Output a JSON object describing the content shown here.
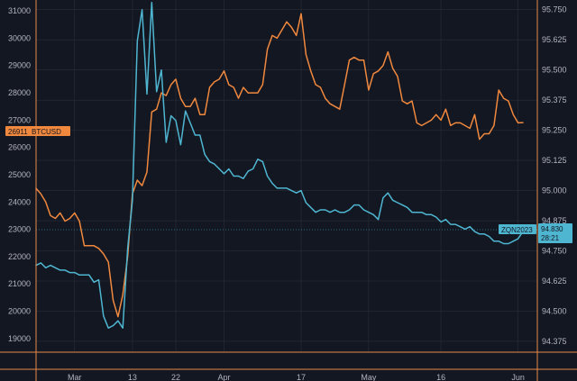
{
  "chart_data": {
    "type": "line",
    "grid": true,
    "colors": {
      "background": "#131722",
      "grid": "#2a2e39",
      "btc": "#f0883e",
      "zqn": "#4fb6d1",
      "frame": "#e8884a"
    },
    "x_axis": {
      "labels": [
        "Mar",
        "13",
        "22",
        "Apr",
        "17",
        "May",
        "16",
        "Jun"
      ],
      "positions": [
        "2023-03-01",
        "2023-03-13",
        "2023-03-22",
        "2023-04-01",
        "2023-04-17",
        "2023-05-01",
        "2023-05-16",
        "2023-06-01"
      ],
      "range": [
        "2023-02-21",
        "2023-06-05"
      ]
    },
    "y_left": {
      "ticks": [
        31000,
        30000,
        29000,
        28000,
        27000,
        26000,
        25000,
        24000,
        23000,
        22000,
        21000,
        20000,
        19000
      ],
      "range": [
        18500,
        31400
      ]
    },
    "y_right": {
      "ticks": [
        95.75,
        95.625,
        95.5,
        95.375,
        95.25,
        95.125,
        95.0,
        94.875,
        94.75,
        94.625,
        94.5,
        94.375
      ],
      "tick_labels": [
        "95.750",
        "95.625",
        "95.500",
        "95.375",
        "95.250",
        "95.125",
        "95.000",
        "94.875",
        "94.750",
        "94.625",
        "94.500",
        "94.375"
      ],
      "range": [
        94.33,
        95.79
      ]
    },
    "last_price_tags": {
      "btc": {
        "value": "26911",
        "label": "BTCUSD"
      },
      "zqn": {
        "label": "ZQN2023",
        "value": "94.830",
        "countdown": "28:21"
      }
    },
    "series": [
      {
        "name": "BTCUSD",
        "axis": "left",
        "x": [
          "2023-02-21",
          "2023-02-22",
          "2023-02-23",
          "2023-02-24",
          "2023-02-25",
          "2023-02-26",
          "2023-02-27",
          "2023-02-28",
          "2023-03-01",
          "2023-03-02",
          "2023-03-03",
          "2023-03-04",
          "2023-03-05",
          "2023-03-06",
          "2023-03-07",
          "2023-03-08",
          "2023-03-09",
          "2023-03-10",
          "2023-03-11",
          "2023-03-12",
          "2023-03-13",
          "2023-03-14",
          "2023-03-15",
          "2023-03-16",
          "2023-03-17",
          "2023-03-18",
          "2023-03-19",
          "2023-03-20",
          "2023-03-21",
          "2023-03-22",
          "2023-03-23",
          "2023-03-24",
          "2023-03-25",
          "2023-03-26",
          "2023-03-27",
          "2023-03-28",
          "2023-03-29",
          "2023-03-30",
          "2023-03-31",
          "2023-04-01",
          "2023-04-02",
          "2023-04-03",
          "2023-04-04",
          "2023-04-05",
          "2023-04-06",
          "2023-04-07",
          "2023-04-08",
          "2023-04-09",
          "2023-04-10",
          "2023-04-11",
          "2023-04-12",
          "2023-04-13",
          "2023-04-14",
          "2023-04-15",
          "2023-04-16",
          "2023-04-17",
          "2023-04-18",
          "2023-04-19",
          "2023-04-20",
          "2023-04-21",
          "2023-04-22",
          "2023-04-23",
          "2023-04-24",
          "2023-04-25",
          "2023-04-26",
          "2023-04-27",
          "2023-04-28",
          "2023-04-29",
          "2023-04-30",
          "2023-05-01",
          "2023-05-02",
          "2023-05-03",
          "2023-05-04",
          "2023-05-05",
          "2023-05-06",
          "2023-05-07",
          "2023-05-08",
          "2023-05-09",
          "2023-05-10",
          "2023-05-11",
          "2023-05-12",
          "2023-05-13",
          "2023-05-14",
          "2023-05-15",
          "2023-05-16",
          "2023-05-17",
          "2023-05-18",
          "2023-05-19",
          "2023-05-20",
          "2023-05-21",
          "2023-05-22",
          "2023-05-23",
          "2023-05-24",
          "2023-05-25",
          "2023-05-26",
          "2023-05-27",
          "2023-05-28",
          "2023-05-29",
          "2023-05-30",
          "2023-05-31",
          "2023-06-01",
          "2023-06-02"
        ],
        "values": [
          24500,
          24300,
          24000,
          23500,
          23400,
          23600,
          23300,
          23400,
          23600,
          23300,
          22400,
          22400,
          22400,
          22300,
          22100,
          21800,
          20400,
          19800,
          20600,
          22000,
          24300,
          24800,
          24600,
          25100,
          27300,
          27400,
          28000,
          27900,
          28300,
          28500,
          27800,
          27500,
          27500,
          27800,
          27200,
          27200,
          28200,
          28400,
          28500,
          28800,
          28300,
          28200,
          27800,
          28200,
          28000,
          28000,
          28000,
          28300,
          29600,
          30100,
          30000,
          30300,
          30600,
          30400,
          30100,
          30900,
          29400,
          28800,
          28300,
          28200,
          27800,
          27600,
          27500,
          27400,
          28300,
          29200,
          29300,
          29200,
          29200,
          28100,
          28700,
          28800,
          29000,
          29500,
          28900,
          28600,
          27700,
          27600,
          27700,
          26900,
          26800,
          26900,
          27000,
          27200,
          27000,
          27400,
          26800,
          26900,
          26900,
          26800,
          26700,
          27200,
          26300,
          26500,
          26500,
          26800,
          28100,
          27800,
          27700,
          27200,
          26900,
          26911
        ]
      },
      {
        "name": "ZQN2023",
        "axis": "right",
        "x": [
          "2023-02-21",
          "2023-02-22",
          "2023-02-23",
          "2023-02-24",
          "2023-02-25",
          "2023-02-26",
          "2023-02-27",
          "2023-02-28",
          "2023-03-01",
          "2023-03-02",
          "2023-03-03",
          "2023-03-04",
          "2023-03-05",
          "2023-03-06",
          "2023-03-07",
          "2023-03-08",
          "2023-03-09",
          "2023-03-10",
          "2023-03-11",
          "2023-03-12",
          "2023-03-13",
          "2023-03-14",
          "2023-03-15",
          "2023-03-16",
          "2023-03-17",
          "2023-03-18",
          "2023-03-19",
          "2023-03-20",
          "2023-03-21",
          "2023-03-22",
          "2023-03-23",
          "2023-03-24",
          "2023-03-25",
          "2023-03-26",
          "2023-03-27",
          "2023-03-28",
          "2023-03-29",
          "2023-03-30",
          "2023-03-31",
          "2023-04-01",
          "2023-04-02",
          "2023-04-03",
          "2023-04-04",
          "2023-04-05",
          "2023-04-06",
          "2023-04-07",
          "2023-04-08",
          "2023-04-09",
          "2023-04-10",
          "2023-04-11",
          "2023-04-12",
          "2023-04-13",
          "2023-04-14",
          "2023-04-15",
          "2023-04-16",
          "2023-04-17",
          "2023-04-18",
          "2023-04-19",
          "2023-04-20",
          "2023-04-21",
          "2023-04-22",
          "2023-04-23",
          "2023-04-24",
          "2023-04-25",
          "2023-04-26",
          "2023-04-27",
          "2023-04-28",
          "2023-04-29",
          "2023-04-30",
          "2023-05-01",
          "2023-05-02",
          "2023-05-03",
          "2023-05-04",
          "2023-05-05",
          "2023-05-06",
          "2023-05-07",
          "2023-05-08",
          "2023-05-09",
          "2023-05-10",
          "2023-05-11",
          "2023-05-12",
          "2023-05-13",
          "2023-05-14",
          "2023-05-15",
          "2023-05-16",
          "2023-05-17",
          "2023-05-18",
          "2023-05-19",
          "2023-05-20",
          "2023-05-21",
          "2023-05-22",
          "2023-05-23",
          "2023-05-24",
          "2023-05-25",
          "2023-05-26",
          "2023-05-27",
          "2023-05-28",
          "2023-05-29",
          "2023-05-30",
          "2023-05-31",
          "2023-06-01",
          "2023-06-02"
        ],
        "values": [
          94.69,
          94.7,
          94.68,
          94.69,
          94.68,
          94.67,
          94.67,
          94.66,
          94.66,
          94.65,
          94.65,
          94.65,
          94.62,
          94.63,
          94.48,
          94.43,
          94.44,
          94.46,
          94.43,
          94.76,
          94.96,
          95.62,
          95.75,
          95.4,
          95.78,
          95.41,
          95.5,
          95.2,
          95.31,
          95.29,
          95.19,
          95.33,
          95.28,
          95.23,
          95.23,
          95.15,
          95.12,
          95.11,
          95.09,
          95.07,
          95.09,
          95.06,
          95.06,
          95.05,
          95.08,
          95.09,
          95.13,
          95.12,
          95.06,
          95.03,
          95.01,
          95.01,
          95.01,
          95.0,
          94.99,
          95.0,
          94.95,
          94.93,
          94.91,
          94.92,
          94.92,
          94.91,
          94.92,
          94.91,
          94.91,
          94.92,
          94.94,
          94.94,
          94.92,
          94.91,
          94.9,
          94.88,
          94.97,
          94.99,
          94.96,
          94.95,
          94.94,
          94.93,
          94.91,
          94.91,
          94.91,
          94.9,
          94.9,
          94.89,
          94.87,
          94.88,
          94.86,
          94.86,
          94.85,
          94.84,
          94.85,
          94.83,
          94.82,
          94.82,
          94.81,
          94.79,
          94.79,
          94.78,
          94.78,
          94.79,
          94.8,
          94.83
        ]
      }
    ]
  }
}
